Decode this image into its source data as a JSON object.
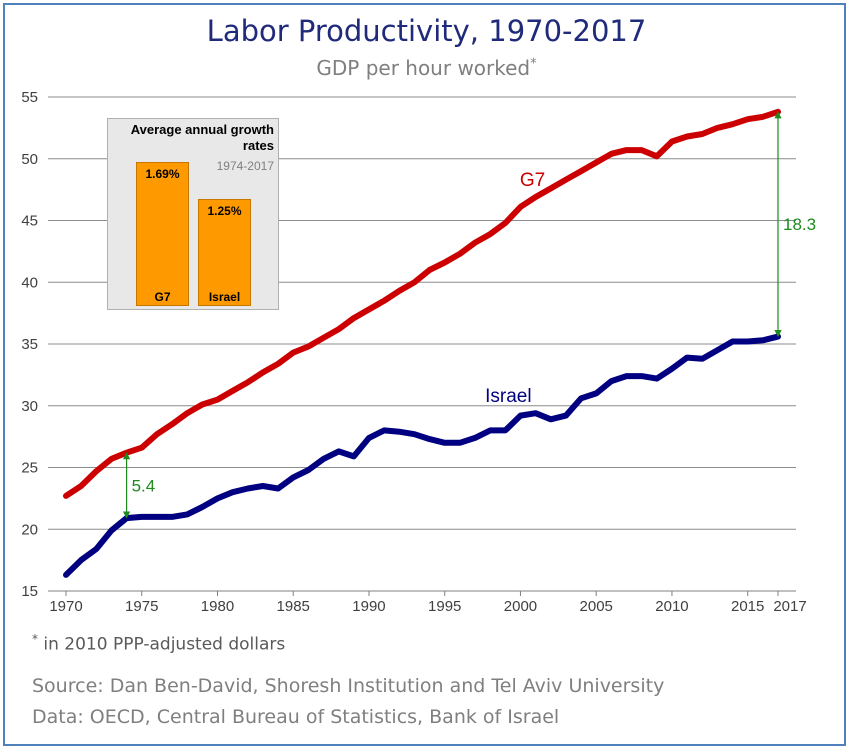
{
  "title": "Labor Productivity, 1970-2017",
  "subtitle": "GDP per hour worked",
  "subtitle_mark": "*",
  "footnote_mark": "*",
  "footnote": " in 2010 PPP-adjusted dollars",
  "source": "Source: Dan Ben-David, Shoresh Institution and Tel Aviv University",
  "data_source": "Data: OECD, Central Bureau of Statistics, Bank of Israel",
  "colors": {
    "g7": "#cc0000",
    "israel": "#000080",
    "gap": "#1e8a1e",
    "inset_bar": "#ff9900"
  },
  "chart_data": [
    {
      "type": "line",
      "title": "Labor Productivity, 1970-2017",
      "subtitle": "GDP per hour worked",
      "xlabel": "",
      "ylabel": "",
      "xlim": [
        1970,
        2017
      ],
      "ylim": [
        15,
        55
      ],
      "x_ticks": [
        1970,
        1975,
        1980,
        1985,
        1990,
        1995,
        2000,
        2005,
        2010,
        2015,
        2017
      ],
      "y_ticks": [
        15,
        20,
        25,
        30,
        35,
        40,
        45,
        50,
        55
      ],
      "grid": true,
      "legend": "none",
      "x": [
        1970,
        1971,
        1972,
        1973,
        1974,
        1975,
        1976,
        1977,
        1978,
        1979,
        1980,
        1981,
        1982,
        1983,
        1984,
        1985,
        1986,
        1987,
        1988,
        1989,
        1990,
        1991,
        1992,
        1993,
        1994,
        1995,
        1996,
        1997,
        1998,
        1999,
        2000,
        2001,
        2002,
        2003,
        2004,
        2005,
        2006,
        2007,
        2008,
        2009,
        2010,
        2011,
        2012,
        2013,
        2014,
        2015,
        2016,
        2017
      ],
      "series": [
        {
          "name": "G7",
          "values": [
            22.7,
            23.5,
            24.7,
            25.7,
            26.2,
            26.6,
            27.7,
            28.5,
            29.4,
            30.1,
            30.5,
            31.2,
            31.9,
            32.7,
            33.4,
            34.3,
            34.8,
            35.5,
            36.2,
            37.1,
            37.8,
            38.5,
            39.3,
            40.0,
            41.0,
            41.6,
            42.3,
            43.2,
            43.9,
            44.8,
            46.1,
            46.9,
            47.6,
            48.3,
            49.0,
            49.7,
            50.4,
            50.7,
            50.7,
            50.2,
            51.4,
            51.8,
            52.0,
            52.5,
            52.8,
            53.2,
            53.4,
            53.8
          ]
        },
        {
          "name": "Israel",
          "values": [
            16.3,
            17.5,
            18.4,
            19.9,
            20.9,
            21.0,
            21.0,
            21.0,
            21.2,
            21.8,
            22.5,
            23.0,
            23.3,
            23.5,
            23.3,
            24.2,
            24.8,
            25.7,
            26.3,
            25.9,
            27.4,
            28.0,
            27.9,
            27.7,
            27.3,
            27.0,
            27.0,
            27.4,
            28.0,
            28.0,
            29.2,
            29.4,
            28.9,
            29.2,
            30.6,
            31.0,
            32.0,
            32.4,
            32.4,
            32.2,
            33.0,
            33.9,
            33.8,
            34.5,
            35.2,
            35.2,
            35.3,
            35.6
          ]
        }
      ],
      "annotations": [
        {
          "label": "5.4",
          "x": 1974,
          "y_from": 20.9,
          "y_to": 26.2
        },
        {
          "label": "18.3",
          "x": 2017,
          "y_from": 35.6,
          "y_to": 53.8
        }
      ]
    },
    {
      "type": "bar",
      "title": "Average annual growth rates",
      "period": "1974-2017",
      "categories": [
        "G7",
        "Israel"
      ],
      "values": [
        1.69,
        1.25
      ],
      "value_labels": [
        "1.69%",
        "1.25%"
      ]
    }
  ]
}
